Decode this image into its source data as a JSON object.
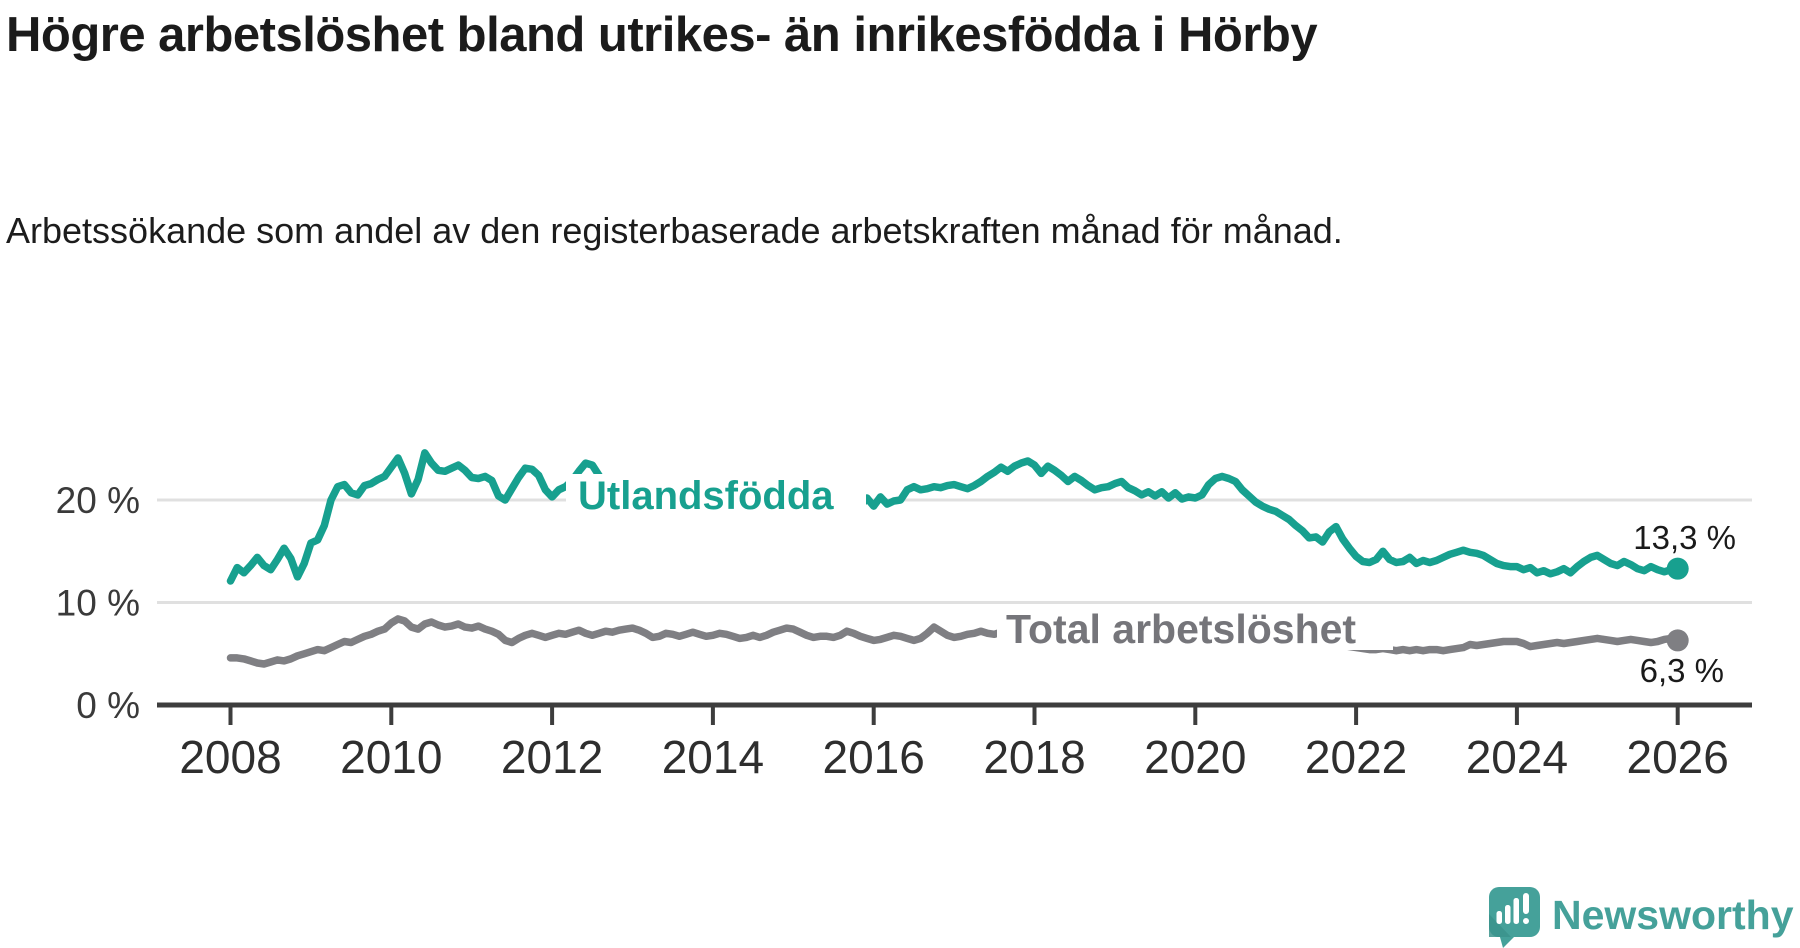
{
  "header": {
    "title": "Högre arbetslöshet bland utrikes- än inrikesfödda i Hörby",
    "subtitle": "Arbetssökande som andel av den registerbaserade arbetskraften månad för månad."
  },
  "chart_data": {
    "type": "line",
    "unit": "%",
    "x_monthly_start": "2008-01",
    "x_monthly_end": "2026-01",
    "x_tick_labels": [
      "2008",
      "2010",
      "2012",
      "2014",
      "2016",
      "2018",
      "2020",
      "2022",
      "2024",
      "2026"
    ],
    "y_ticks": [
      {
        "value": 0,
        "label": "0 %"
      },
      {
        "value": 10,
        "label": "10 %"
      },
      {
        "value": 20,
        "label": "20 %"
      }
    ],
    "ylim": [
      0,
      27
    ],
    "grid": "horizontal",
    "legend_position": "inline-labels",
    "series": [
      {
        "name": "Utlandsfödda",
        "label": "Utlandsfödda",
        "color": "#17a08f",
        "end_value": 13.3,
        "end_value_label": "13,3 %",
        "values": [
          12.1,
          13.4,
          12.9,
          13.6,
          14.4,
          13.6,
          13.2,
          14.2,
          15.3,
          14.3,
          12.5,
          13.8,
          15.8,
          16.1,
          17.5,
          20.0,
          21.3,
          21.5,
          20.7,
          20.5,
          21.4,
          21.6,
          22.0,
          22.3,
          23.2,
          24.1,
          22.6,
          20.6,
          22.0,
          24.6,
          23.6,
          22.9,
          22.8,
          23.1,
          23.4,
          22.9,
          22.2,
          22.1,
          22.3,
          21.9,
          20.4,
          20.0,
          21.1,
          22.2,
          23.1,
          23.0,
          22.4,
          21.0,
          20.3,
          21.0,
          21.3,
          21.9,
          22.8,
          23.6,
          23.4,
          22.4,
          21.5,
          21.0,
          20.8,
          21.2,
          21.5,
          21.0,
          20.6,
          20.9,
          21.3,
          21.6,
          22.1,
          21.8,
          21.2,
          20.9,
          20.6,
          20.9,
          21.2,
          20.8,
          20.5,
          20.8,
          21.1,
          20.7,
          20.4,
          20.6,
          20.9,
          20.5,
          20.2,
          20.4,
          20.7,
          20.3,
          20.0,
          20.2,
          20.5,
          20.1,
          19.8,
          20.0,
          20.3,
          20.0,
          19.4,
          20.2,
          19.4,
          20.3,
          19.6,
          19.9,
          20.0,
          21.0,
          21.3,
          21.0,
          21.1,
          21.3,
          21.2,
          21.4,
          21.5,
          21.3,
          21.1,
          21.4,
          21.8,
          22.3,
          22.7,
          23.2,
          22.8,
          23.3,
          23.6,
          23.8,
          23.4,
          22.6,
          23.3,
          22.9,
          22.4,
          21.8,
          22.3,
          21.9,
          21.4,
          21.0,
          21.2,
          21.3,
          21.6,
          21.8,
          21.2,
          20.9,
          20.5,
          20.8,
          20.4,
          20.8,
          20.2,
          20.7,
          20.1,
          20.3,
          20.2,
          20.5,
          21.5,
          22.1,
          22.3,
          22.1,
          21.8,
          21.0,
          20.4,
          19.8,
          19.4,
          19.1,
          18.9,
          18.5,
          18.1,
          17.5,
          17.0,
          16.3,
          16.4,
          15.9,
          16.9,
          17.4,
          16.2,
          15.3,
          14.5,
          14.0,
          13.9,
          14.2,
          15.0,
          14.2,
          13.9,
          14.0,
          14.4,
          13.8,
          14.1,
          13.9,
          14.1,
          14.4,
          14.7,
          14.9,
          15.1,
          14.9,
          14.8,
          14.6,
          14.2,
          13.8,
          13.6,
          13.5,
          13.5,
          13.2,
          13.4,
          12.9,
          13.1,
          12.8,
          13.0,
          13.3,
          12.9,
          13.5,
          14.0,
          14.4,
          14.6,
          14.2,
          13.8,
          13.6,
          14.0,
          13.7,
          13.3,
          13.1,
          13.5,
          13.2,
          13.0,
          13.2,
          13.3
        ]
      },
      {
        "name": "Total arbetslöshet",
        "label": "Total arbetslöshet",
        "color": "#7f7f83",
        "end_value": 6.3,
        "end_value_label": "6,3 %",
        "values": [
          4.6,
          4.6,
          4.5,
          4.3,
          4.1,
          4.0,
          4.2,
          4.4,
          4.3,
          4.5,
          4.8,
          5.0,
          5.2,
          5.4,
          5.3,
          5.6,
          5.9,
          6.2,
          6.1,
          6.4,
          6.7,
          6.9,
          7.2,
          7.4,
          8.0,
          8.4,
          8.2,
          7.6,
          7.4,
          7.9,
          8.1,
          7.8,
          7.6,
          7.7,
          7.9,
          7.6,
          7.5,
          7.7,
          7.4,
          7.2,
          6.9,
          6.3,
          6.1,
          6.5,
          6.8,
          7.0,
          6.8,
          6.6,
          6.8,
          7.0,
          6.9,
          7.1,
          7.3,
          7.0,
          6.8,
          7.0,
          7.2,
          7.1,
          7.3,
          7.4,
          7.5,
          7.3,
          7.0,
          6.6,
          6.7,
          7.0,
          6.9,
          6.7,
          6.9,
          7.1,
          6.9,
          6.7,
          6.8,
          7.0,
          6.9,
          6.7,
          6.5,
          6.6,
          6.8,
          6.6,
          6.8,
          7.1,
          7.3,
          7.5,
          7.4,
          7.1,
          6.8,
          6.6,
          6.7,
          6.7,
          6.6,
          6.8,
          7.2,
          7.0,
          6.7,
          6.5,
          6.3,
          6.4,
          6.6,
          6.8,
          6.7,
          6.5,
          6.3,
          6.5,
          7.0,
          7.6,
          7.2,
          6.8,
          6.6,
          6.7,
          6.9,
          7.0,
          7.2,
          7.0,
          6.9,
          7.1,
          7.0,
          6.8,
          6.9,
          7.1,
          7.0,
          6.8,
          6.7,
          6.8,
          6.6,
          6.5,
          6.6,
          6.4,
          6.3,
          6.4,
          6.5,
          6.6,
          6.5,
          6.4,
          6.3,
          6.4,
          6.5,
          6.6,
          6.5,
          6.7,
          6.8,
          6.9,
          7.0,
          7.1,
          7.2,
          7.3,
          7.8,
          8.2,
          8.4,
          8.5,
          8.4,
          8.2,
          8.0,
          7.8,
          7.6,
          7.5,
          7.4,
          7.2,
          7.0,
          6.8,
          6.6,
          6.4,
          6.2,
          6.1,
          6.0,
          5.9,
          5.8,
          5.7,
          5.6,
          5.5,
          5.4,
          5.4,
          5.5,
          5.4,
          5.3,
          5.4,
          5.3,
          5.4,
          5.3,
          5.4,
          5.4,
          5.3,
          5.4,
          5.5,
          5.6,
          5.9,
          5.8,
          5.9,
          6.0,
          6.1,
          6.2,
          6.2,
          6.2,
          6.0,
          5.7,
          5.8,
          5.9,
          6.0,
          6.1,
          6.0,
          6.1,
          6.2,
          6.3,
          6.4,
          6.5,
          6.4,
          6.3,
          6.2,
          6.3,
          6.4,
          6.3,
          6.2,
          6.1,
          6.2,
          6.4,
          6.5,
          6.3
        ]
      }
    ]
  },
  "footer": {
    "brand": "Newsworthy"
  },
  "colors": {
    "accent_teal": "#17a08f",
    "series_gray": "#7f7f83",
    "gray_label": "#75757a",
    "grid": "#e0e0e0",
    "axis": "#3d3d3d",
    "tick_label": "#2e2e2e",
    "y_label": "#3a3a3a",
    "value_label": "#1a1a1a",
    "logo_teal": "#45a19a",
    "logo_shade": "#3b938c"
  }
}
